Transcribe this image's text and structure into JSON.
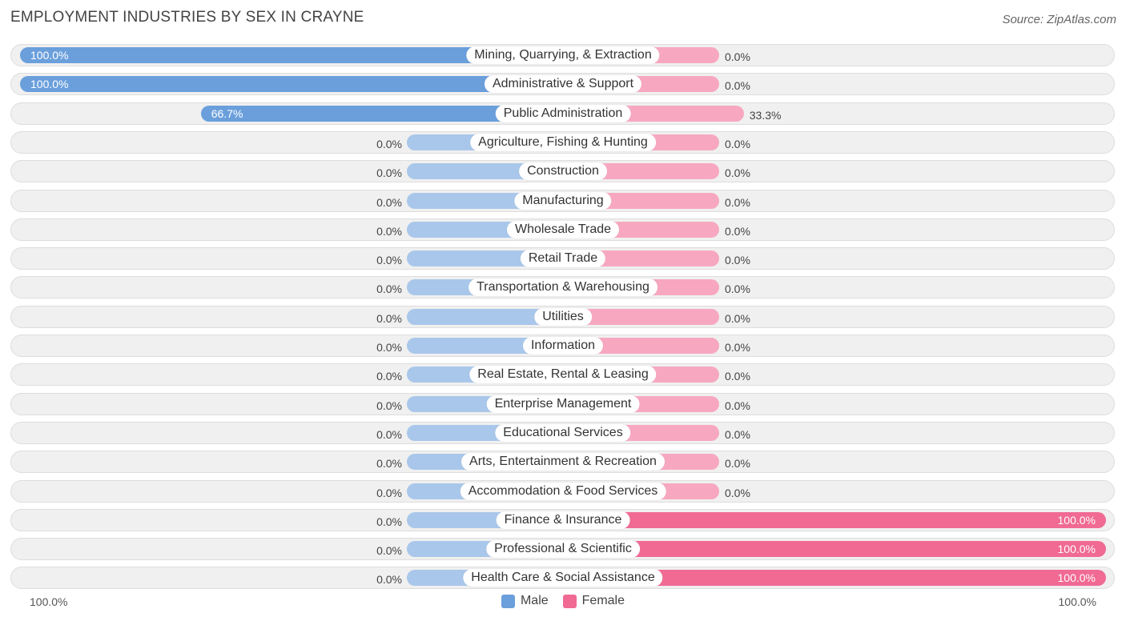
{
  "header": {
    "title": "EMPLOYMENT INDUSTRIES BY SEX IN CRAYNE",
    "source": "Source: ZipAtlas.com"
  },
  "colors": {
    "male": "#6a9fdc",
    "male_light": "#a9c7ea",
    "female": "#f06a94",
    "female_light": "#f7a8c0"
  },
  "chart_data": {
    "type": "bar",
    "orientation": "horizontal-diverging",
    "title": "EMPLOYMENT INDUSTRIES BY SEX IN CRAYNE",
    "categories": [
      "Mining, Quarrying, & Extraction",
      "Administrative & Support",
      "Public Administration",
      "Agriculture, Fishing & Hunting",
      "Construction",
      "Manufacturing",
      "Wholesale Trade",
      "Retail Trade",
      "Transportation & Warehousing",
      "Utilities",
      "Information",
      "Real Estate, Rental & Leasing",
      "Enterprise Management",
      "Educational Services",
      "Arts, Entertainment & Recreation",
      "Accommodation & Food Services",
      "Finance & Insurance",
      "Professional & Scientific",
      "Health Care & Social Assistance"
    ],
    "series": [
      {
        "name": "Male",
        "values": [
          100.0,
          100.0,
          66.7,
          0,
          0,
          0,
          0,
          0,
          0,
          0,
          0,
          0,
          0,
          0,
          0,
          0,
          0,
          0,
          0
        ],
        "labels": [
          "100.0%",
          "100.0%",
          "66.7%",
          "0.0%",
          "0.0%",
          "0.0%",
          "0.0%",
          "0.0%",
          "0.0%",
          "0.0%",
          "0.0%",
          "0.0%",
          "0.0%",
          "0.0%",
          "0.0%",
          "0.0%",
          "0.0%",
          "0.0%",
          "0.0%"
        ]
      },
      {
        "name": "Female",
        "values": [
          0,
          0,
          33.3,
          0,
          0,
          0,
          0,
          0,
          0,
          0,
          0,
          0,
          0,
          0,
          0,
          0,
          100.0,
          100.0,
          100.0
        ],
        "labels": [
          "0.0%",
          "0.0%",
          "33.3%",
          "0.0%",
          "0.0%",
          "0.0%",
          "0.0%",
          "0.0%",
          "0.0%",
          "0.0%",
          "0.0%",
          "0.0%",
          "0.0%",
          "0.0%",
          "0.0%",
          "0.0%",
          "100.0%",
          "100.0%",
          "100.0%"
        ]
      }
    ],
    "xlim": [
      0,
      100
    ],
    "axis_labels": {
      "left": "100.0%",
      "right": "100.0%"
    },
    "legend": {
      "position": "bottom-center",
      "items": [
        "Male",
        "Female"
      ]
    }
  }
}
